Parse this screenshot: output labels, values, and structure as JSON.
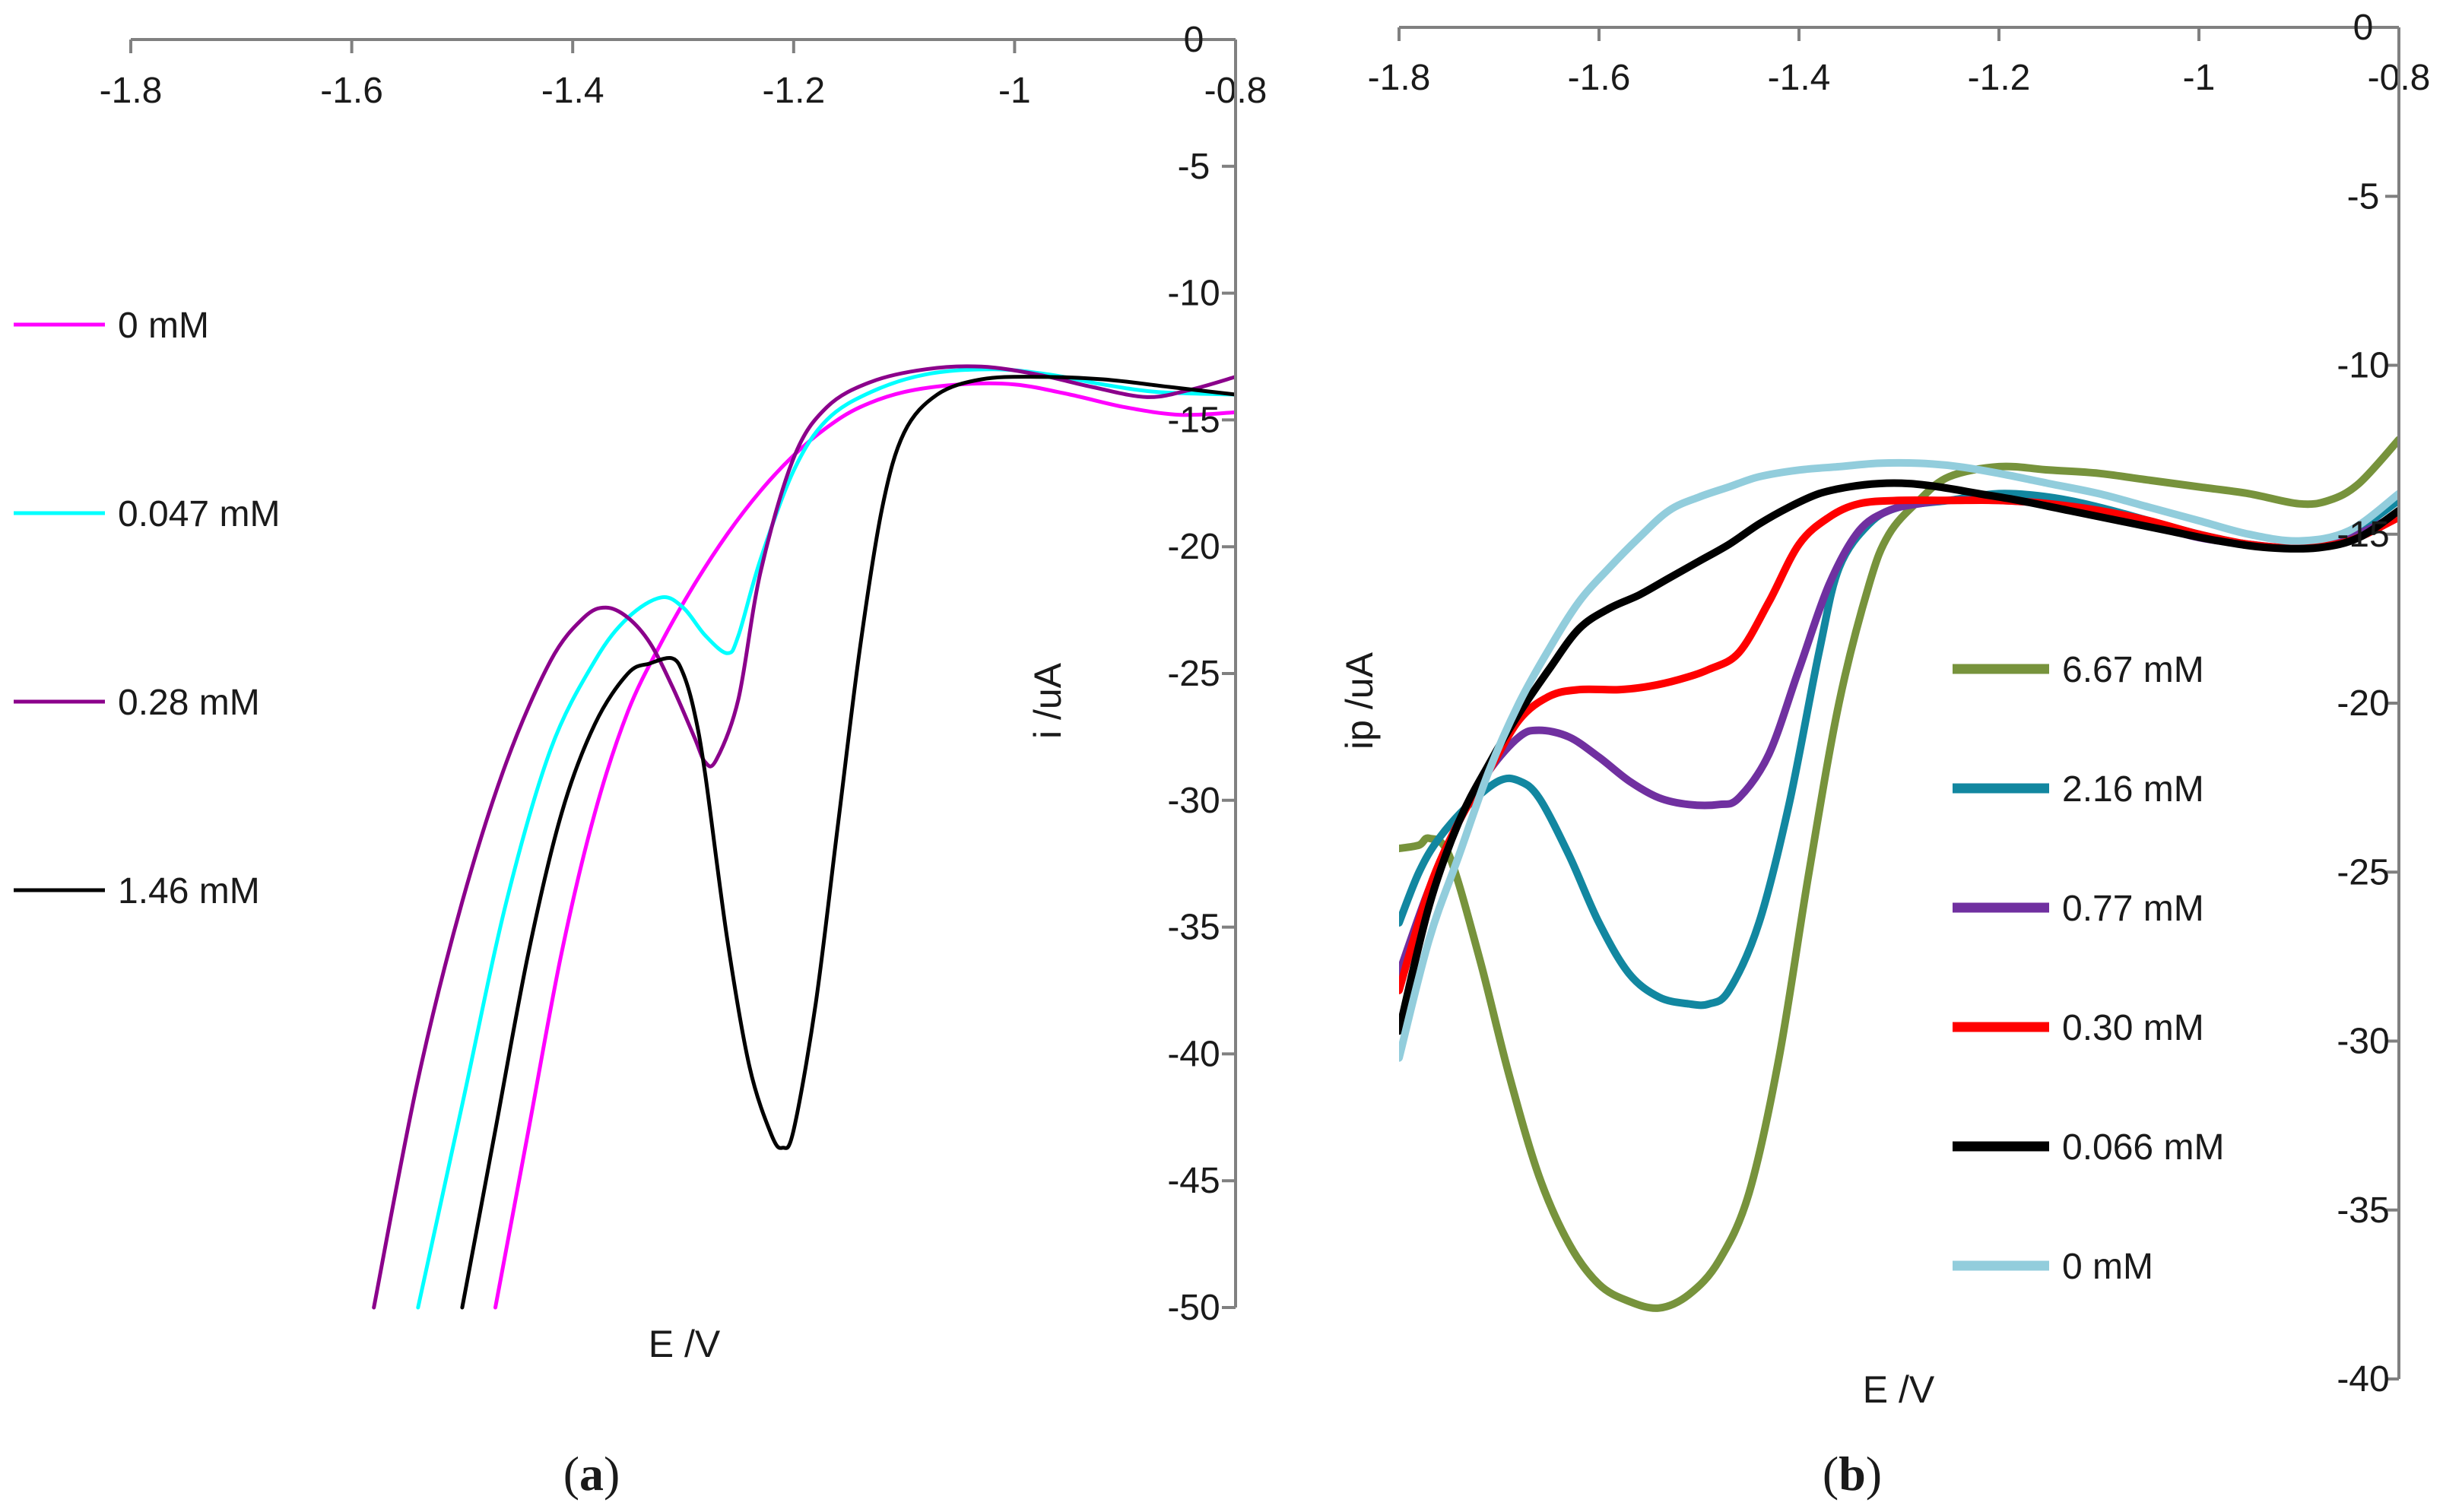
{
  "chart_data": [
    {
      "panel": "a",
      "type": "line",
      "panel_label": {
        "open": "(",
        "letter": "a",
        "close": ")"
      },
      "xlabel": "E /V",
      "ylabel": "i /uA",
      "xlim": [
        -1.8,
        -0.8
      ],
      "ylim": [
        -50,
        0
      ],
      "x_ticks": [
        -1.8,
        -1.6,
        -1.4,
        -1.2,
        -1.0,
        -0.8
      ],
      "x_tick_labels": [
        "-1.8",
        "-1.6",
        "-1.4",
        "-1.2",
        "-1",
        "-0.8"
      ],
      "y_ticks": [
        0,
        -5,
        -10,
        -15,
        -20,
        -25,
        -30,
        -35,
        -40,
        -45,
        -50
      ],
      "y_tick_labels": [
        "0",
        "-5",
        "-10",
        "-15",
        "-20",
        "-25",
        "-30",
        "-35",
        "-40",
        "-45",
        "-50"
      ],
      "grid": false,
      "legend_position": "left",
      "series": [
        {
          "name": "0 mM",
          "color": "#ff00ff",
          "x": [
            -1.47,
            -1.44,
            -1.41,
            -1.38,
            -1.35,
            -1.32,
            -1.29,
            -1.26,
            -1.23,
            -1.2,
            -1.17,
            -1.14,
            -1.1,
            -1.05,
            -1.0,
            -0.95,
            -0.9,
            -0.85,
            -0.8
          ],
          "y": [
            -50,
            -43,
            -36,
            -30.5,
            -26.5,
            -23.8,
            -21.5,
            -19.5,
            -17.8,
            -16.4,
            -15.3,
            -14.5,
            -13.9,
            -13.6,
            -13.6,
            -14.0,
            -14.5,
            -14.8,
            -14.7
          ]
        },
        {
          "name": "0.047 mM",
          "color": "#00ffff",
          "x": [
            -1.54,
            -1.5,
            -1.46,
            -1.42,
            -1.38,
            -1.35,
            -1.32,
            -1.3,
            -1.28,
            -1.26,
            -1.25,
            -1.23,
            -1.2,
            -1.17,
            -1.13,
            -1.08,
            -1.02,
            -0.97,
            -0.92,
            -0.87,
            -0.8
          ],
          "y": [
            -50,
            -42,
            -34,
            -28,
            -24.5,
            -22.8,
            -22.0,
            -22.4,
            -23.5,
            -24.2,
            -23.5,
            -20.5,
            -17.0,
            -15.0,
            -13.9,
            -13.2,
            -13.0,
            -13.2,
            -13.6,
            -13.9,
            -14.0
          ]
        },
        {
          "name": "0.28 mM",
          "color": "#8b008b",
          "x": [
            -1.58,
            -1.54,
            -1.5,
            -1.46,
            -1.42,
            -1.39,
            -1.37,
            -1.35,
            -1.33,
            -1.31,
            -1.29,
            -1.28,
            -1.27,
            -1.25,
            -1.23,
            -1.2,
            -1.17,
            -1.13,
            -1.08,
            -1.03,
            -0.98,
            -0.93,
            -0.88,
            -0.84,
            -0.8
          ],
          "y": [
            -50,
            -41,
            -34,
            -28.5,
            -24.5,
            -22.8,
            -22.4,
            -22.8,
            -23.8,
            -25.5,
            -27.5,
            -28.5,
            -28.4,
            -26.0,
            -21.0,
            -16.5,
            -14.5,
            -13.5,
            -13.0,
            -12.9,
            -13.2,
            -13.7,
            -14.1,
            -13.8,
            -13.3
          ]
        },
        {
          "name": "1.46 mM",
          "color": "#000000",
          "x": [
            -1.5,
            -1.47,
            -1.44,
            -1.41,
            -1.38,
            -1.35,
            -1.33,
            -1.31,
            -1.3,
            -1.29,
            -1.28,
            -1.26,
            -1.24,
            -1.22,
            -1.21,
            -1.2,
            -1.18,
            -1.16,
            -1.14,
            -1.12,
            -1.1,
            -1.07,
            -1.03,
            -0.98,
            -0.92,
            -0.86,
            -0.8
          ],
          "y": [
            -50,
            -43,
            -36,
            -30.5,
            -27.0,
            -25.0,
            -24.6,
            -24.4,
            -25.0,
            -26.5,
            -29,
            -35.5,
            -40.5,
            -43.2,
            -43.7,
            -43.0,
            -38.0,
            -31.0,
            -24.0,
            -18.5,
            -15.5,
            -14.0,
            -13.4,
            -13.3,
            -13.4,
            -13.7,
            -14.0
          ]
        }
      ]
    },
    {
      "panel": "b",
      "type": "line",
      "panel_label": {
        "open": "(",
        "letter": "b",
        "close": ")"
      },
      "xlabel": "E /V",
      "ylabel": "ip /uA",
      "xlim": [
        -1.8,
        -0.8
      ],
      "ylim": [
        -40,
        0
      ],
      "x_ticks": [
        -1.8,
        -1.6,
        -1.4,
        -1.2,
        -1.0,
        -0.8
      ],
      "x_tick_labels": [
        "-1.8",
        "-1.6",
        "-1.4",
        "-1.2",
        "-1",
        "-0.8"
      ],
      "y_ticks": [
        0,
        -5,
        -10,
        -15,
        -20,
        -25,
        -30,
        -35,
        -40
      ],
      "y_tick_labels": [
        "0",
        "-5",
        "-10",
        "-15",
        "-20",
        "-25",
        "-30",
        "-35",
        "-40"
      ],
      "grid": false,
      "legend_position": "right",
      "series": [
        {
          "name": "6.67 mM",
          "color": "#77933c",
          "x": [
            -1.8,
            -1.78,
            -1.77,
            -1.75,
            -1.72,
            -1.69,
            -1.66,
            -1.63,
            -1.6,
            -1.57,
            -1.54,
            -1.51,
            -1.48,
            -1.45,
            -1.42,
            -1.39,
            -1.36,
            -1.33,
            -1.31,
            -1.28,
            -1.25,
            -1.2,
            -1.15,
            -1.1,
            -1.05,
            -1.0,
            -0.95,
            -0.9,
            -0.87,
            -0.84,
            -0.8
          ],
          "y": [
            -24.3,
            -24.2,
            -24.0,
            -24.5,
            -27.5,
            -31.0,
            -34.0,
            -36.0,
            -37.2,
            -37.7,
            -37.9,
            -37.5,
            -36.5,
            -34.5,
            -30.5,
            -25.0,
            -20.0,
            -16.5,
            -15.0,
            -14.0,
            -13.3,
            -13.0,
            -13.1,
            -13.2,
            -13.4,
            -13.6,
            -13.8,
            -14.1,
            -14.0,
            -13.5,
            -12.2
          ]
        },
        {
          "name": "2.16 mM",
          "color": "#1287a0",
          "x": [
            -1.8,
            -1.78,
            -1.76,
            -1.73,
            -1.7,
            -1.68,
            -1.66,
            -1.63,
            -1.6,
            -1.57,
            -1.54,
            -1.51,
            -1.49,
            -1.47,
            -1.44,
            -1.41,
            -1.38,
            -1.36,
            -1.33,
            -1.3,
            -1.25,
            -1.2,
            -1.15,
            -1.1,
            -1.05,
            -1.0,
            -0.95,
            -0.9,
            -0.85,
            -0.8
          ],
          "y": [
            -26.5,
            -25.0,
            -24.0,
            -23.0,
            -22.3,
            -22.3,
            -22.8,
            -24.5,
            -26.5,
            -28.0,
            -28.7,
            -28.9,
            -28.9,
            -28.5,
            -26.5,
            -23.0,
            -18.5,
            -16.0,
            -14.7,
            -14.2,
            -14.0,
            -13.8,
            -13.9,
            -14.2,
            -14.6,
            -15.0,
            -15.3,
            -15.4,
            -15.0,
            -14.0
          ]
        },
        {
          "name": "0.77 mM",
          "color": "#7030a0",
          "x": [
            -1.8,
            -1.77,
            -1.74,
            -1.71,
            -1.68,
            -1.66,
            -1.63,
            -1.6,
            -1.57,
            -1.54,
            -1.51,
            -1.48,
            -1.46,
            -1.43,
            -1.4,
            -1.37,
            -1.34,
            -1.31,
            -1.28,
            -1.25,
            -1.2,
            -1.15,
            -1.1,
            -1.05,
            -1.0,
            -0.95,
            -0.9,
            -0.85,
            -0.8
          ],
          "y": [
            -28.0,
            -25.5,
            -23.5,
            -22.0,
            -21.0,
            -20.8,
            -21.0,
            -21.6,
            -22.3,
            -22.8,
            -23.0,
            -23.0,
            -22.8,
            -21.5,
            -19.0,
            -16.5,
            -14.9,
            -14.3,
            -14.1,
            -14.0,
            -14.0,
            -14.1,
            -14.3,
            -14.7,
            -15.1,
            -15.3,
            -15.4,
            -15.1,
            -14.4
          ]
        },
        {
          "name": "0.30 mM",
          "color": "#ff0000",
          "x": [
            -1.8,
            -1.77,
            -1.74,
            -1.71,
            -1.68,
            -1.65,
            -1.62,
            -1.58,
            -1.55,
            -1.52,
            -1.49,
            -1.46,
            -1.43,
            -1.4,
            -1.37,
            -1.34,
            -1.3,
            -1.25,
            -1.2,
            -1.15,
            -1.1,
            -1.05,
            -1.0,
            -0.95,
            -0.9,
            -0.85,
            -0.8
          ],
          "y": [
            -28.5,
            -25.5,
            -23.5,
            -22.0,
            -20.5,
            -19.8,
            -19.6,
            -19.6,
            -19.5,
            -19.3,
            -19.0,
            -18.5,
            -17.0,
            -15.3,
            -14.5,
            -14.1,
            -14.0,
            -14.0,
            -14.0,
            -14.1,
            -14.3,
            -14.6,
            -15.0,
            -15.3,
            -15.4,
            -15.2,
            -14.5
          ]
        },
        {
          "name": "0.066 mM",
          "color": "#000000",
          "x": [
            -1.8,
            -1.77,
            -1.74,
            -1.71,
            -1.68,
            -1.65,
            -1.62,
            -1.59,
            -1.56,
            -1.53,
            -1.5,
            -1.47,
            -1.44,
            -1.41,
            -1.38,
            -1.35,
            -1.32,
            -1.29,
            -1.26,
            -1.22,
            -1.18,
            -1.13,
            -1.08,
            -1.03,
            -0.98,
            -0.93,
            -0.88,
            -0.84,
            -0.8
          ],
          "y": [
            -29.7,
            -26.0,
            -23.5,
            -21.8,
            -20.3,
            -19.0,
            -17.8,
            -17.2,
            -16.8,
            -16.3,
            -15.8,
            -15.3,
            -14.7,
            -14.2,
            -13.8,
            -13.6,
            -13.5,
            -13.5,
            -13.6,
            -13.8,
            -14.0,
            -14.3,
            -14.6,
            -14.9,
            -15.2,
            -15.4,
            -15.4,
            -15.1,
            -14.3
          ]
        },
        {
          "name": "0 mM",
          "color": "#92cddc",
          "x": [
            -1.8,
            -1.77,
            -1.74,
            -1.71,
            -1.68,
            -1.65,
            -1.62,
            -1.59,
            -1.56,
            -1.53,
            -1.5,
            -1.47,
            -1.44,
            -1.4,
            -1.36,
            -1.32,
            -1.28,
            -1.24,
            -1.2,
            -1.15,
            -1.1,
            -1.05,
            -1.0,
            -0.95,
            -0.9,
            -0.85,
            -0.8
          ],
          "y": [
            -30.5,
            -27.0,
            -24.5,
            -22.0,
            -20.0,
            -18.4,
            -17.0,
            -16.0,
            -15.1,
            -14.3,
            -13.9,
            -13.6,
            -13.3,
            -13.1,
            -13.0,
            -12.9,
            -12.9,
            -13.0,
            -13.2,
            -13.5,
            -13.8,
            -14.2,
            -14.6,
            -15.0,
            -15.2,
            -14.9,
            -13.8
          ]
        }
      ]
    }
  ]
}
